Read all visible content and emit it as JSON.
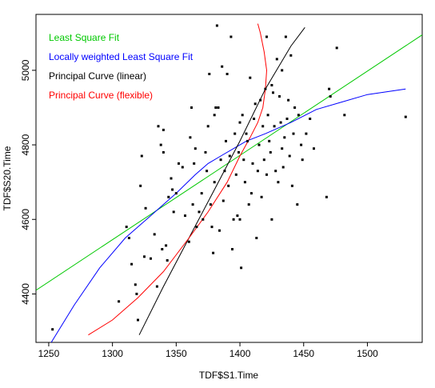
{
  "chart_data": {
    "type": "scatter",
    "xlabel": "TDF$S1.Time",
    "ylabel": "TDF$S20.Time",
    "xlim": [
      1240,
      1543
    ],
    "ylim": [
      4270,
      5150
    ],
    "x_ticks": [
      1250,
      1300,
      1350,
      1400,
      1450,
      1500
    ],
    "y_ticks": [
      4400,
      4600,
      4800,
      5000
    ],
    "grid": false,
    "legend_position": "top-left",
    "legend": [
      {
        "label": "Least Square Fit",
        "color": "#00c800"
      },
      {
        "label": "Locally weighted Least Square Fit",
        "color": "#0000ff"
      },
      {
        "label": "Principal Curve (linear)",
        "color": "#000000"
      },
      {
        "label": "Principal Curve (flexible)",
        "color": "#ff0000"
      }
    ],
    "points": [
      [
        1253,
        4305
      ],
      [
        1305,
        4380
      ],
      [
        1311,
        4580
      ],
      [
        1313,
        4550
      ],
      [
        1315,
        4480
      ],
      [
        1318,
        4425
      ],
      [
        1319,
        4400
      ],
      [
        1320,
        4330
      ],
      [
        1322,
        4690
      ],
      [
        1323,
        4770
      ],
      [
        1325,
        4500
      ],
      [
        1326,
        4630
      ],
      [
        1330,
        4495
      ],
      [
        1333,
        4560
      ],
      [
        1335,
        4420
      ],
      [
        1336,
        4850
      ],
      [
        1338,
        4800
      ],
      [
        1339,
        4520
      ],
      [
        1340,
        4780
      ],
      [
        1340,
        4840
      ],
      [
        1342,
        4530
      ],
      [
        1343,
        4490
      ],
      [
        1344,
        4660
      ],
      [
        1346,
        4710
      ],
      [
        1347,
        4680
      ],
      [
        1348,
        4620
      ],
      [
        1350,
        4670
      ],
      [
        1352,
        4750
      ],
      [
        1355,
        4740
      ],
      [
        1357,
        4610
      ],
      [
        1360,
        4540
      ],
      [
        1361,
        4820
      ],
      [
        1362,
        4900
      ],
      [
        1363,
        4640
      ],
      [
        1364,
        4750
      ],
      [
        1365,
        4790
      ],
      [
        1366,
        4580
      ],
      [
        1368,
        4620
      ],
      [
        1370,
        4670
      ],
      [
        1371,
        4600
      ],
      [
        1373,
        4780
      ],
      [
        1374,
        4730
      ],
      [
        1375,
        4850
      ],
      [
        1376,
        4990
      ],
      [
        1377,
        4640
      ],
      [
        1378,
        4580
      ],
      [
        1379,
        4510
      ],
      [
        1380,
        4880
      ],
      [
        1380,
        4700
      ],
      [
        1381,
        4900
      ],
      [
        1382,
        5120
      ],
      [
        1383,
        4900
      ],
      [
        1384,
        4570
      ],
      [
        1385,
        4760
      ],
      [
        1386,
        5010
      ],
      [
        1387,
        4650
      ],
      [
        1388,
        4730
      ],
      [
        1389,
        4810
      ],
      [
        1390,
        4990
      ],
      [
        1391,
        4690
      ],
      [
        1392,
        4770
      ],
      [
        1393,
        5090
      ],
      [
        1394,
        4520
      ],
      [
        1395,
        4600
      ],
      [
        1396,
        4830
      ],
      [
        1397,
        4720
      ],
      [
        1398,
        4610
      ],
      [
        1399,
        4780
      ],
      [
        1400,
        4860
      ],
      [
        1400,
        4600
      ],
      [
        1401,
        4470
      ],
      [
        1402,
        4880
      ],
      [
        1403,
        4760
      ],
      [
        1404,
        4700
      ],
      [
        1405,
        4830
      ],
      [
        1406,
        4810
      ],
      [
        1407,
        4640
      ],
      [
        1408,
        4980
      ],
      [
        1409,
        4670
      ],
      [
        1410,
        4750
      ],
      [
        1411,
        4870
      ],
      [
        1412,
        4910
      ],
      [
        1413,
        4550
      ],
      [
        1414,
        4730
      ],
      [
        1415,
        4800
      ],
      [
        1416,
        4920
      ],
      [
        1417,
        4660
      ],
      [
        1418,
        4850
      ],
      [
        1419,
        4760
      ],
      [
        1420,
        4950
      ],
      [
        1421,
        4720
      ],
      [
        1421,
        5090
      ],
      [
        1422,
        4880
      ],
      [
        1423,
        4810
      ],
      [
        1424,
        4780
      ],
      [
        1425,
        4600
      ],
      [
        1425,
        4960
      ],
      [
        1426,
        4940
      ],
      [
        1427,
        4850
      ],
      [
        1428,
        4730
      ],
      [
        1429,
        5030
      ],
      [
        1430,
        4700
      ],
      [
        1431,
        4930
      ],
      [
        1432,
        4860
      ],
      [
        1433,
        4790
      ],
      [
        1433,
        5000
      ],
      [
        1434,
        4740
      ],
      [
        1435,
        4820
      ],
      [
        1436,
        5090
      ],
      [
        1437,
        4870
      ],
      [
        1438,
        4920
      ],
      [
        1439,
        4770
      ],
      [
        1440,
        5040
      ],
      [
        1441,
        4690
      ],
      [
        1442,
        4830
      ],
      [
        1443,
        4900
      ],
      [
        1445,
        4640
      ],
      [
        1446,
        4880
      ],
      [
        1448,
        4800
      ],
      [
        1449,
        4760
      ],
      [
        1452,
        4830
      ],
      [
        1455,
        4870
      ],
      [
        1458,
        4790
      ],
      [
        1468,
        4660
      ],
      [
        1470,
        4950
      ],
      [
        1471,
        4930
      ],
      [
        1476,
        5060
      ],
      [
        1482,
        4880
      ],
      [
        1530,
        4875
      ]
    ],
    "series": [
      {
        "name": "Least Square Fit",
        "color": "#00c800",
        "x": [
          1240,
          1543
        ],
        "y": [
          4410,
          5095
        ]
      },
      {
        "name": "Locally weighted Least Square Fit",
        "color": "#0000ff",
        "x": [
          1252,
          1270,
          1290,
          1310,
          1330,
          1350,
          1365,
          1375,
          1385,
          1395,
          1405,
          1420,
          1440,
          1460,
          1480,
          1500,
          1530
        ],
        "y": [
          4270,
          4370,
          4470,
          4550,
          4610,
          4670,
          4720,
          4750,
          4770,
          4790,
          4810,
          4830,
          4860,
          4895,
          4915,
          4935,
          4950
        ]
      },
      {
        "name": "Principal Curve (linear)",
        "color": "#000000",
        "x": [
          1321,
          1340,
          1360,
          1380,
          1400,
          1420,
          1440,
          1451
        ],
        "y": [
          4290,
          4420,
          4550,
          4680,
          4810,
          4950,
          5065,
          5115
        ]
      },
      {
        "name": "Principal Curve (flexible)",
        "color": "#ff0000",
        "x": [
          1281,
          1300,
          1320,
          1340,
          1360,
          1375,
          1390,
          1400,
          1408,
          1414,
          1418,
          1420,
          1421,
          1419,
          1416,
          1414
        ],
        "y": [
          4290,
          4330,
          4390,
          4460,
          4550,
          4620,
          4700,
          4770,
          4820,
          4860,
          4900,
          4950,
          5000,
          5050,
          5100,
          5125
        ]
      }
    ]
  }
}
